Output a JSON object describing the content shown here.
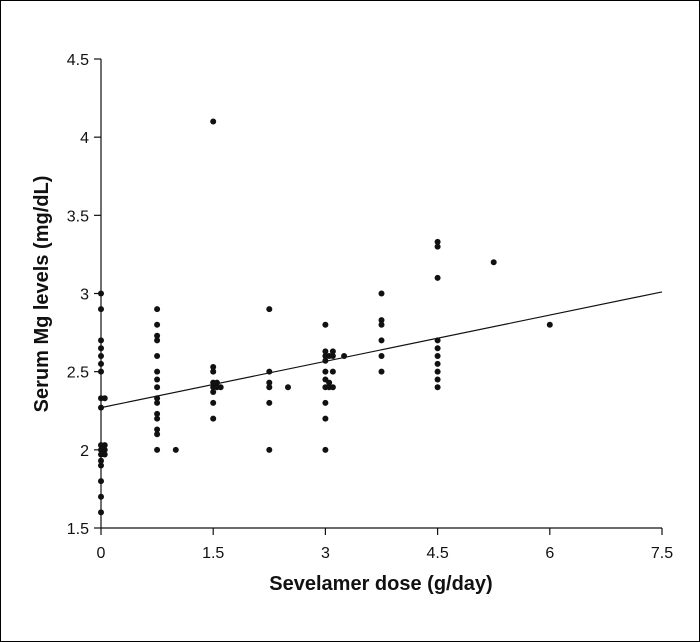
{
  "chart_data": {
    "type": "scatter",
    "xlabel": "Sevelamer dose (g/day)",
    "ylabel": "Serum Mg levels (mg/dL)",
    "xlim": [
      0,
      7.5
    ],
    "ylim": [
      1.5,
      4.5
    ],
    "x_ticks": [
      "0",
      "1.5",
      "3",
      "4.5",
      "6",
      "7.5"
    ],
    "y_ticks": [
      "1.5",
      "2",
      "2.5",
      "3",
      "3.5",
      "4",
      "4.5"
    ],
    "grid": false,
    "marker_color": "#111111",
    "trendline": {
      "x": [
        0,
        7.5
      ],
      "y": [
        2.27,
        3.01
      ]
    },
    "points": [
      [
        0,
        3.0
      ],
      [
        0,
        2.9
      ],
      [
        0,
        2.7
      ],
      [
        0,
        2.65
      ],
      [
        0,
        2.6
      ],
      [
        0,
        2.55
      ],
      [
        0,
        2.5
      ],
      [
        0,
        2.33
      ],
      [
        0,
        2.27
      ],
      [
        0,
        2.03
      ],
      [
        0,
        2.0
      ],
      [
        0,
        1.97
      ],
      [
        0,
        1.93
      ],
      [
        0,
        1.9
      ],
      [
        0,
        1.8
      ],
      [
        0,
        1.7
      ],
      [
        0,
        1.6
      ],
      [
        0.05,
        2.33
      ],
      [
        0.05,
        2.03
      ],
      [
        0.05,
        2.0
      ],
      [
        0.05,
        1.97
      ],
      [
        0.75,
        2.9
      ],
      [
        0.75,
        2.8
      ],
      [
        0.75,
        2.73
      ],
      [
        0.75,
        2.7
      ],
      [
        0.75,
        2.6
      ],
      [
        0.75,
        2.5
      ],
      [
        0.75,
        2.45
      ],
      [
        0.75,
        2.4
      ],
      [
        0.75,
        2.33
      ],
      [
        0.75,
        2.3
      ],
      [
        0.75,
        2.23
      ],
      [
        0.75,
        2.2
      ],
      [
        0.75,
        2.13
      ],
      [
        0.75,
        2.1
      ],
      [
        0.75,
        2.0
      ],
      [
        1.0,
        2.0
      ],
      [
        1.5,
        4.1
      ],
      [
        1.5,
        2.53
      ],
      [
        1.5,
        2.5
      ],
      [
        1.5,
        2.43
      ],
      [
        1.5,
        2.4
      ],
      [
        1.5,
        2.37
      ],
      [
        1.5,
        2.3
      ],
      [
        1.5,
        2.2
      ],
      [
        1.55,
        2.43
      ],
      [
        1.55,
        2.4
      ],
      [
        1.6,
        2.4
      ],
      [
        2.25,
        2.9
      ],
      [
        2.25,
        2.5
      ],
      [
        2.25,
        2.43
      ],
      [
        2.25,
        2.4
      ],
      [
        2.25,
        2.3
      ],
      [
        2.25,
        2.0
      ],
      [
        2.5,
        2.4
      ],
      [
        3.0,
        2.8
      ],
      [
        3.0,
        2.63
      ],
      [
        3.0,
        2.6
      ],
      [
        3.0,
        2.57
      ],
      [
        3.0,
        2.5
      ],
      [
        3.0,
        2.45
      ],
      [
        3.0,
        2.4
      ],
      [
        3.0,
        2.3
      ],
      [
        3.0,
        2.2
      ],
      [
        3.0,
        2.0
      ],
      [
        3.05,
        2.6
      ],
      [
        3.05,
        2.43
      ],
      [
        3.05,
        2.4
      ],
      [
        3.1,
        2.63
      ],
      [
        3.1,
        2.6
      ],
      [
        3.1,
        2.5
      ],
      [
        3.1,
        2.4
      ],
      [
        3.25,
        2.6
      ],
      [
        3.75,
        3.0
      ],
      [
        3.75,
        2.83
      ],
      [
        3.75,
        2.8
      ],
      [
        3.75,
        2.7
      ],
      [
        3.75,
        2.6
      ],
      [
        3.75,
        2.5
      ],
      [
        4.5,
        3.33
      ],
      [
        4.5,
        3.3
      ],
      [
        4.5,
        3.1
      ],
      [
        4.5,
        2.7
      ],
      [
        4.5,
        2.65
      ],
      [
        4.5,
        2.6
      ],
      [
        4.5,
        2.55
      ],
      [
        4.5,
        2.5
      ],
      [
        4.5,
        2.45
      ],
      [
        4.5,
        2.4
      ],
      [
        5.25,
        3.2
      ],
      [
        6.0,
        2.8
      ]
    ]
  }
}
